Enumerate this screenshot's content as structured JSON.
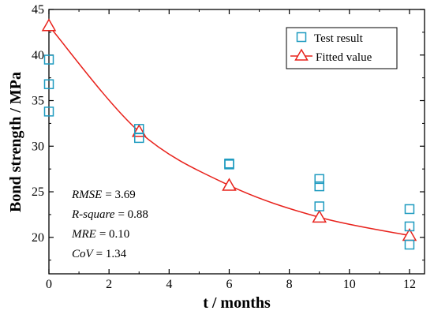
{
  "chart_data": {
    "type": "scatter",
    "xlabel": "t / months",
    "ylabel": "Bond strength / MPa",
    "xlim": [
      0,
      12.5
    ],
    "ylim": [
      16,
      45
    ],
    "x_ticks": [
      0,
      2,
      4,
      6,
      8,
      10,
      12
    ],
    "y_ticks": [
      20,
      25,
      30,
      35,
      40,
      45
    ],
    "series": [
      {
        "name": "Test result",
        "marker": "square",
        "color": "#1f9bc0",
        "points": [
          {
            "x": 0,
            "y": 39.5
          },
          {
            "x": 0,
            "y": 36.8
          },
          {
            "x": 0,
            "y": 33.8
          },
          {
            "x": 3,
            "y": 31.9
          },
          {
            "x": 3,
            "y": 30.9
          },
          {
            "x": 6,
            "y": 28.1
          },
          {
            "x": 6,
            "y": 28.0
          },
          {
            "x": 9,
            "y": 26.4
          },
          {
            "x": 9,
            "y": 25.6
          },
          {
            "x": 9,
            "y": 23.4
          },
          {
            "x": 12,
            "y": 23.1
          },
          {
            "x": 12,
            "y": 21.2
          },
          {
            "x": 12,
            "y": 19.2
          }
        ]
      },
      {
        "name": "Fitted value",
        "marker": "triangle",
        "color": "#e8221c",
        "line": true,
        "points": [
          {
            "x": 0,
            "y": 43.2
          },
          {
            "x": 3,
            "y": 31.6
          },
          {
            "x": 6,
            "y": 25.7
          },
          {
            "x": 9,
            "y": 22.2
          },
          {
            "x": 12,
            "y": 20.2
          }
        ]
      }
    ],
    "legend_position": "top-right",
    "annotations": [
      {
        "label": "RMSE",
        "value": "= 3.69"
      },
      {
        "label": "R-square",
        "value": "= 0.88"
      },
      {
        "label": "MRE",
        "value": "= 0.10"
      },
      {
        "label": "CoV",
        "value": "= 1.34"
      }
    ]
  }
}
